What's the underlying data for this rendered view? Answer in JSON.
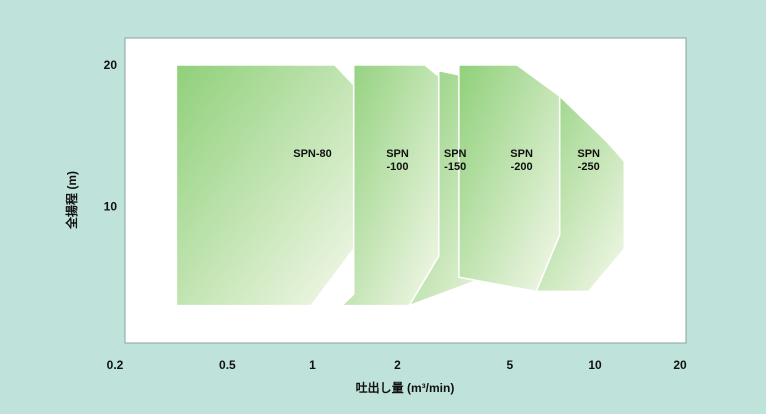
{
  "colors": {
    "background": "#bfe3da",
    "plot_area": "#ffffff",
    "region_fill_dark": "#8fd07a",
    "region_fill_light": "#f4f8ea",
    "region_stroke": "#ffffff",
    "text": "#111111"
  },
  "chart_data": {
    "type": "area",
    "title": "",
    "xlabel": "吐出し量 (m³/min)",
    "ylabel": "全揚程 (m)",
    "x_scale": "log",
    "xlim": [
      0.2,
      20
    ],
    "ylim": [
      0,
      23
    ],
    "x_ticks": [
      {
        "value": 0.2,
        "label": "0.2"
      },
      {
        "value": 0.5,
        "label": "0.5"
      },
      {
        "value": 1,
        "label": "1"
      },
      {
        "value": 2,
        "label": "2"
      },
      {
        "value": 5,
        "label": "5"
      },
      {
        "value": 10,
        "label": "10"
      },
      {
        "value": 20,
        "label": "20"
      }
    ],
    "y_ticks": [
      {
        "value": 10,
        "label": "10"
      },
      {
        "value": 20,
        "label": "20"
      }
    ],
    "grid": false,
    "legend": "none",
    "series": [
      {
        "name": "SPN-80",
        "label_lines": [
          "SPN-80"
        ],
        "label_at": [
          1,
          13.5
        ],
        "polygon": [
          [
            0.33,
            3
          ],
          [
            0.33,
            20
          ],
          [
            1.2,
            20
          ],
          [
            1.4,
            18.6
          ],
          [
            1.4,
            7
          ],
          [
            0.99,
            3
          ]
        ]
      },
      {
        "name": "SPN-100",
        "label_lines": [
          "SPN",
          "-100"
        ],
        "label_at": [
          2,
          13.5
        ],
        "polygon": [
          [
            1.27,
            3
          ],
          [
            1.4,
            3.8
          ],
          [
            1.4,
            20
          ],
          [
            2.5,
            20
          ],
          [
            2.8,
            19.2
          ],
          [
            2.8,
            6.5
          ],
          [
            2.2,
            3
          ]
        ]
      },
      {
        "name": "SPN-150",
        "label_lines": [
          "SPN",
          "-150"
        ],
        "label_at": [
          3.2,
          13.5
        ],
        "polygon": [
          [
            2.2,
            3
          ],
          [
            2.8,
            6.5
          ],
          [
            2.8,
            19.6
          ],
          [
            3.3,
            19.3
          ],
          [
            4.8,
            17.8
          ],
          [
            4.8,
            8.5
          ],
          [
            4.1,
            5
          ]
        ]
      },
      {
        "name": "SPN-200",
        "label_lines": [
          "SPN",
          "-200"
        ],
        "label_at": [
          5.5,
          13.5
        ],
        "polygon": [
          [
            3.3,
            5
          ],
          [
            3.3,
            20
          ],
          [
            5.3,
            20
          ],
          [
            7.5,
            17.8
          ],
          [
            7.5,
            8
          ],
          [
            6.2,
            4
          ]
        ]
      },
      {
        "name": "SPN-250",
        "label_lines": [
          "SPN",
          "-250"
        ],
        "label_at": [
          9.5,
          13.5
        ],
        "polygon": [
          [
            5.4,
            4
          ],
          [
            6.2,
            4
          ],
          [
            7.5,
            8
          ],
          [
            7.5,
            17.8
          ],
          [
            11,
            14.6
          ],
          [
            12.7,
            13.2
          ],
          [
            12.7,
            7
          ],
          [
            9.5,
            4
          ]
        ]
      }
    ]
  }
}
